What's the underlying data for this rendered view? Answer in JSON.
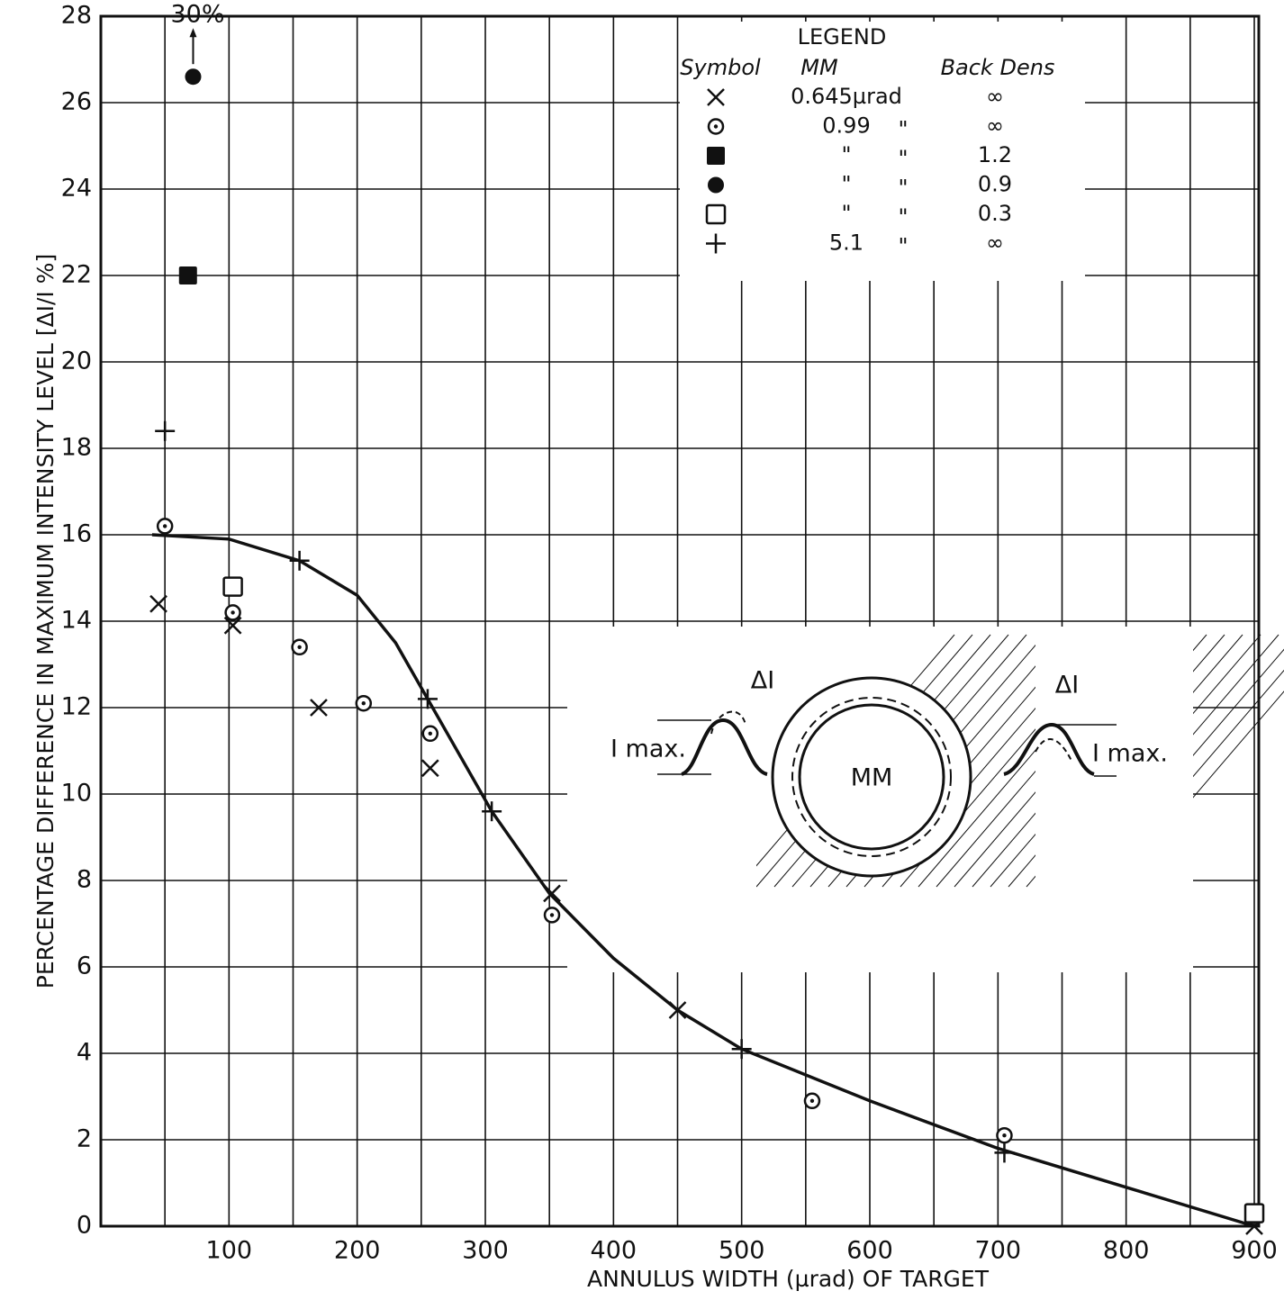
{
  "chart_data": {
    "type": "scatter",
    "xlabel": "ANNULUS WIDTH (µrad) OF TARGET",
    "ylabel": "PERCENTAGE DIFFERENCE IN MAXIMUM INTENSITY LEVEL [ΔI/I %]",
    "xlim": [
      0,
      900
    ],
    "ylim": [
      0,
      28
    ],
    "xticks": [
      100,
      200,
      300,
      400,
      500,
      600,
      700,
      800,
      900
    ],
    "yticks": [
      0,
      2,
      4,
      6,
      8,
      10,
      12,
      14,
      16,
      18,
      20,
      22,
      24,
      26,
      28
    ],
    "xgrid": [
      50,
      150,
      250,
      350,
      450,
      550,
      650,
      750,
      850
    ],
    "grid": true,
    "color": "#111111",
    "series": [
      {
        "marker": "x",
        "x": [
          45,
          103,
          170,
          257,
          352,
          450,
          900
        ],
        "values": [
          14.4,
          13.9,
          12.0,
          10.6,
          7.7,
          5.0,
          0.0
        ]
      },
      {
        "marker": "circle-dot",
        "x": [
          50,
          103,
          155,
          205,
          257,
          352,
          555,
          705
        ],
        "values": [
          16.2,
          14.2,
          13.4,
          12.1,
          11.4,
          7.2,
          2.9,
          2.1
        ]
      },
      {
        "marker": "filled-square",
        "x": [
          68
        ],
        "values": [
          22.0
        ]
      },
      {
        "marker": "filled-circle",
        "x": [
          72
        ],
        "values": [
          26.6
        ]
      },
      {
        "marker": "open-square",
        "x": [
          103,
          900
        ],
        "values": [
          14.8,
          0.3
        ]
      },
      {
        "marker": "plus",
        "x": [
          50,
          155,
          255,
          305,
          500,
          705
        ],
        "values": [
          18.4,
          15.4,
          12.2,
          9.6,
          4.1,
          1.7
        ]
      }
    ],
    "curve": {
      "type": "line",
      "x": [
        40,
        100,
        155,
        200,
        230,
        255,
        305,
        350,
        400,
        450,
        500,
        600,
        700,
        800,
        900
      ],
      "values": [
        16.0,
        15.9,
        15.4,
        14.6,
        13.5,
        12.2,
        9.6,
        7.7,
        6.2,
        5.0,
        4.1,
        2.9,
        1.8,
        0.9,
        0.0
      ]
    },
    "annotation": "30%",
    "legend": {
      "title": "LEGEND",
      "headers": [
        "Symbol",
        "MM",
        "Back Dens"
      ],
      "rows": [
        {
          "mm": "0.645µrad",
          "dens": "∞"
        },
        {
          "mm": "0.99",
          "ditto": "\"",
          "dens": "∞"
        },
        {
          "mm": "\"",
          "ditto": "\"",
          "dens": "1.2"
        },
        {
          "mm": "\"",
          "ditto": "\"",
          "dens": "0.9"
        },
        {
          "mm": "\"",
          "ditto": "\"",
          "dens": "0.3"
        },
        {
          "mm": "5.1",
          "ditto": "\"",
          "dens": "∞"
        }
      ]
    },
    "inset": {
      "labels": [
        "ΔI",
        "ΔI",
        "I max.",
        "I max.",
        "MM"
      ]
    }
  }
}
